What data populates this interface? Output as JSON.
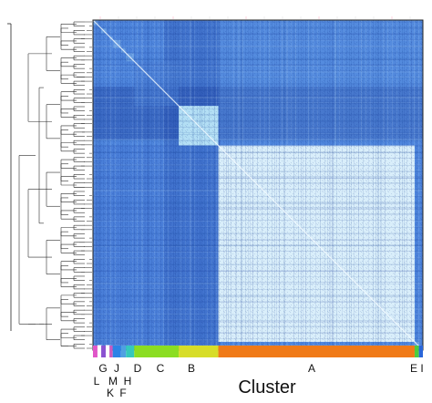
{
  "chart_data": {
    "type": "heatmap",
    "xlabel": "Cluster",
    "colors": {
      "high_similarity": "#dff2fb",
      "mid_similarity": "#4f86dd",
      "low_similarity": "#1e3f9e",
      "diagonal": "#f4fbff",
      "border": "#202020"
    },
    "clusters": [
      {
        "label": "G",
        "color": "#e056c8",
        "start": 0.0,
        "end": 0.015
      },
      {
        "label": "L",
        "color": "#ffffff",
        "start": 0.015,
        "end": 0.025
      },
      {
        "label": "J",
        "color": "#8a52d1",
        "start": 0.025,
        "end": 0.04
      },
      {
        "label": "M",
        "color": "#ffffff",
        "start": 0.04,
        "end": 0.05
      },
      {
        "label": "K",
        "color": "#c95bc1",
        "start": 0.05,
        "end": 0.06
      },
      {
        "label": "H",
        "color": "#2b83e6",
        "start": 0.06,
        "end": 0.085
      },
      {
        "label": "F",
        "color": "#4fa0e2",
        "start": 0.085,
        "end": 0.1
      },
      {
        "label": "D",
        "color": "#35c8bc",
        "start": 0.1,
        "end": 0.125
      },
      {
        "label": "C",
        "color": "#8bdd22",
        "start": 0.125,
        "end": 0.26
      },
      {
        "label": "B",
        "color": "#d7dd28",
        "start": 0.26,
        "end": 0.38
      },
      {
        "label": "A",
        "color": "#f07a18",
        "start": 0.38,
        "end": 0.975
      },
      {
        "label": "E",
        "color": "#4ccd3d",
        "start": 0.975,
        "end": 0.988
      },
      {
        "label": "I",
        "color": "#2a66d9",
        "start": 0.988,
        "end": 1.0
      }
    ]
  },
  "labels": {
    "G": "G",
    "L": "L",
    "J": "J",
    "M": "M",
    "K": "K",
    "H": "H",
    "F": "F",
    "D": "D",
    "C": "C",
    "B": "B",
    "A": "A",
    "E": "E",
    "I": "I"
  }
}
